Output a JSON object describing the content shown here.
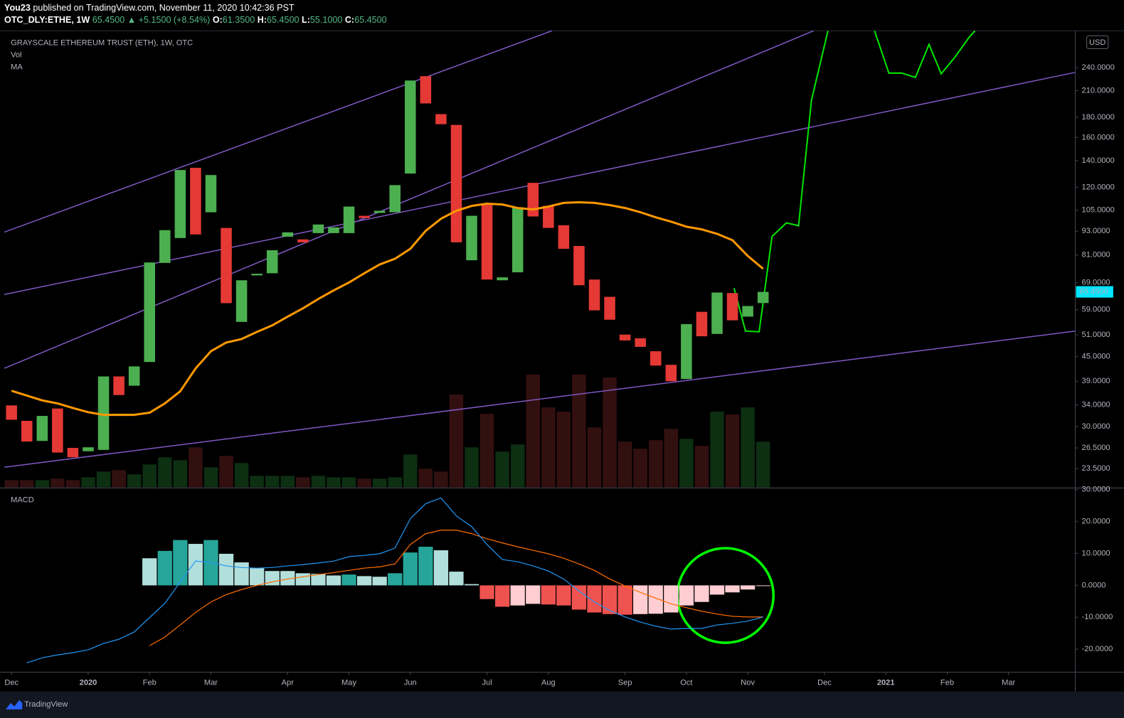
{
  "header": {
    "author": "You23",
    "published": "published on TradingView.com, November 11, 2020 10:42:36 PST",
    "symbol": "OTC_DLY:ETHE, 1W",
    "last": "65.4500",
    "change": "▲ +5.1500 (+8.54%)",
    "ohlc": [
      {
        "label": "O:",
        "value": "61.3500"
      },
      {
        "label": "H:",
        "value": "65.4500"
      },
      {
        "label": "L:",
        "value": "55.1000"
      },
      {
        "label": "C:",
        "value": "65.4500"
      }
    ]
  },
  "chart_data": [
    {
      "type": "candlestick",
      "title": "GRAYSCALE ETHEREUM TRUST (ETH), 1W, OTC",
      "currency": "USD",
      "open": [
        33.9,
        31.0,
        27.6,
        33.3,
        26.5,
        26.0,
        26.2,
        40.1,
        38.0,
        43.6,
        77.4,
        89.4,
        134.3,
        103.8,
        94.8,
        55.0,
        72.0,
        72.9,
        90.1,
        88.7,
        92.0,
        92.0,
        92.0,
        101.7,
        103.4,
        103.8,
        129.9,
        228.4,
        183.3,
        172.2,
        78.6,
        109.1,
        70.0,
        73.3,
        123.1,
        107.7,
        96.3,
        85.4,
        70.3,
        63.6,
        51.1,
        50.0,
        46.4,
        42.9,
        39.5,
        58.3,
        51.3,
        65.0,
        56.7,
        61.35
      ],
      "close": [
        31.2,
        27.5,
        31.9,
        25.8,
        25.1,
        26.6,
        40.1,
        36.0,
        42.5,
        77.6,
        93.6,
        132.6,
        91.3,
        128.8,
        61.3,
        70.0,
        72.7,
        83.3,
        92.4,
        87.2,
        96.7,
        95.1,
        107.3,
        100.4,
        104.7,
        121.5,
        222.7,
        195.0,
        172.9,
        87.2,
        101.7,
        70.3,
        71.2,
        106.9,
        101.3,
        94.8,
        84.0,
        68.0,
        58.8,
        55.7,
        49.4,
        47.6,
        42.7,
        39.0,
        54.3,
        50.6,
        65.2,
        55.5,
        60.3,
        65.45
      ],
      "up_color": "#4caf50",
      "down_color": "#e53935",
      "volume": {
        "name": "Vol",
        "up_color": "#0d2f12",
        "down_color": "#331010",
        "ylim": [
          0,
          640
        ],
        "values": [
          10,
          10,
          10,
          12,
          10,
          14,
          22,
          24,
          18,
          32,
          42,
          38,
          56,
          28,
          44,
          34,
          16,
          16,
          16,
          14,
          16,
          14,
          14,
          12,
          12,
          14,
          46,
          26,
          22,
          130,
          56,
          103,
          50,
          60,
          158,
          112,
          106,
          158,
          84,
          154,
          64,
          54,
          66,
          82,
          68,
          58,
          106,
          102,
          112,
          64
        ]
      },
      "ma": {
        "name": "MA",
        "color": "#ff9800",
        "values": [
          36.9,
          35.9,
          34.9,
          34.3,
          33.4,
          32.6,
          32.1,
          32.1,
          32.1,
          32.5,
          34.3,
          36.8,
          42.0,
          46.4,
          48.8,
          49.8,
          51.9,
          53.9,
          56.7,
          59.5,
          62.8,
          66.0,
          69.1,
          72.9,
          76.7,
          79.3,
          84.0,
          93.2,
          100.0,
          104.7,
          107.7,
          109.1,
          108.6,
          106.4,
          105.5,
          107.3,
          109.6,
          110.0,
          109.6,
          108.2,
          106.4,
          103.8,
          100.8,
          98.3,
          95.5,
          94.0,
          91.6,
          88.3,
          80.6,
          74.8
        ]
      },
      "xlim": [
        -0.47,
        69.35
      ],
      "xticks": [
        {
          "value": 0,
          "label": "Dec"
        },
        {
          "value": 5,
          "label": "2020"
        },
        {
          "value": 9,
          "label": "Feb"
        },
        {
          "value": 13,
          "label": "Mar"
        },
        {
          "value": 18,
          "label": "Apr"
        },
        {
          "value": 22,
          "label": "May"
        },
        {
          "value": 26,
          "label": "Jun"
        },
        {
          "value": 31,
          "label": "Jul"
        },
        {
          "value": 35,
          "label": "Aug"
        },
        {
          "value": 40,
          "label": "Sep"
        },
        {
          "value": 44,
          "label": "Oct"
        },
        {
          "value": 48,
          "label": "Nov"
        },
        {
          "value": 53,
          "label": "Dec"
        },
        {
          "value": 57,
          "label": "2021"
        },
        {
          "value": 61,
          "label": "Feb"
        },
        {
          "value": 65,
          "label": "Mar"
        }
      ],
      "ylim": [
        21.1,
        297
      ],
      "log_scale": true,
      "grid": false,
      "yticks": [
        {
          "value": 23.5,
          "label": "23.5000"
        },
        {
          "value": 26.5,
          "label": "26.5000"
        },
        {
          "value": 30,
          "label": "30.0000"
        },
        {
          "value": 34,
          "label": "34.0000"
        },
        {
          "value": 39,
          "label": "39.0000"
        },
        {
          "value": 45,
          "label": "45.0000"
        },
        {
          "value": 51,
          "label": "51.0000"
        },
        {
          "value": 59,
          "label": "59.0000"
        },
        {
          "value": 69,
          "label": "69.0000"
        },
        {
          "value": 81,
          "label": "81.0000"
        },
        {
          "value": 93,
          "label": "93.0000"
        },
        {
          "value": 105,
          "label": "105.0000"
        },
        {
          "value": 120,
          "label": "120.0000"
        },
        {
          "value": 140,
          "label": "140.0000"
        },
        {
          "value": 160,
          "label": "160.0000"
        },
        {
          "value": 180,
          "label": "180.0000"
        },
        {
          "value": 210,
          "label": "210.0000"
        },
        {
          "value": 240,
          "label": "240.0000"
        }
      ]
    },
    {
      "type": "macd",
      "title": "MACD",
      "histogram": {
        "colors": {
          "up_rising": "#26a69a",
          "up_falling": "#b2dfdb",
          "down_falling": "#ef5350",
          "down_rising": "#ffcdd2"
        },
        "values": [
          null,
          null,
          null,
          null,
          null,
          null,
          null,
          null,
          null,
          8.5,
          10.8,
          14.2,
          13.0,
          14.2,
          9.9,
          7.2,
          5.4,
          4.5,
          4.5,
          3.8,
          3.6,
          3.1,
          3.4,
          2.9,
          2.7,
          3.8,
          10.3,
          12.1,
          11.0,
          4.3,
          0.4,
          -4.3,
          -6.7,
          -6.3,
          -5.8,
          -6.0,
          -6.3,
          -7.6,
          -8.5,
          -9.0,
          -9.2,
          -9.0,
          -8.9,
          -8.5,
          -6.3,
          -5.2,
          -2.9,
          -2.2,
          -1.3,
          -0.2
        ]
      },
      "macd": {
        "color": "#2196f3",
        "values": [
          null,
          -24.3,
          -22.7,
          -21.8,
          -21.1,
          -20.2,
          -18.2,
          -16.9,
          -14.6,
          -10.1,
          -5.6,
          1.1,
          7.6,
          7.2,
          6.1,
          5.6,
          5.4,
          5.6,
          6.1,
          6.5,
          7.0,
          7.6,
          9.0,
          9.4,
          9.9,
          11.7,
          20.9,
          25.6,
          27.4,
          21.8,
          18.4,
          12.8,
          8.1,
          7.4,
          6.1,
          4.5,
          2.0,
          -1.8,
          -5.2,
          -7.9,
          -9.9,
          -11.5,
          -12.8,
          -13.7,
          -13.5,
          -13.5,
          -12.4,
          -11.9,
          -11.2,
          -9.9
        ]
      },
      "signal": {
        "color": "#ff6d00",
        "values": [
          null,
          null,
          null,
          null,
          null,
          null,
          null,
          null,
          null,
          -18.9,
          -16.2,
          -12.4,
          -8.5,
          -5.2,
          -2.9,
          -1.3,
          0,
          1.1,
          2.0,
          2.7,
          3.4,
          4.0,
          4.7,
          5.4,
          5.8,
          6.7,
          12.8,
          16.2,
          17.3,
          17.3,
          16.2,
          14.6,
          13.3,
          12.1,
          11.0,
          9.9,
          8.5,
          6.7,
          4.7,
          2.0,
          -0.2,
          -2.2,
          -4.0,
          -5.8,
          -7.0,
          -8.1,
          -9.0,
          -9.7,
          -9.9,
          -9.9
        ]
      },
      "ylim": [
        -27.2,
        30.3
      ],
      "yticks": [
        {
          "value": 30,
          "label": "30.0000"
        },
        {
          "value": 20,
          "label": "20.0000"
        },
        {
          "value": 10,
          "label": "10.0000"
        },
        {
          "value": 0,
          "label": "0.0000"
        },
        {
          "value": -10,
          "label": "-10.0000"
        },
        {
          "value": -20,
          "label": "-20.0000"
        }
      ]
    }
  ],
  "footer": {
    "brand": "TradingView"
  }
}
